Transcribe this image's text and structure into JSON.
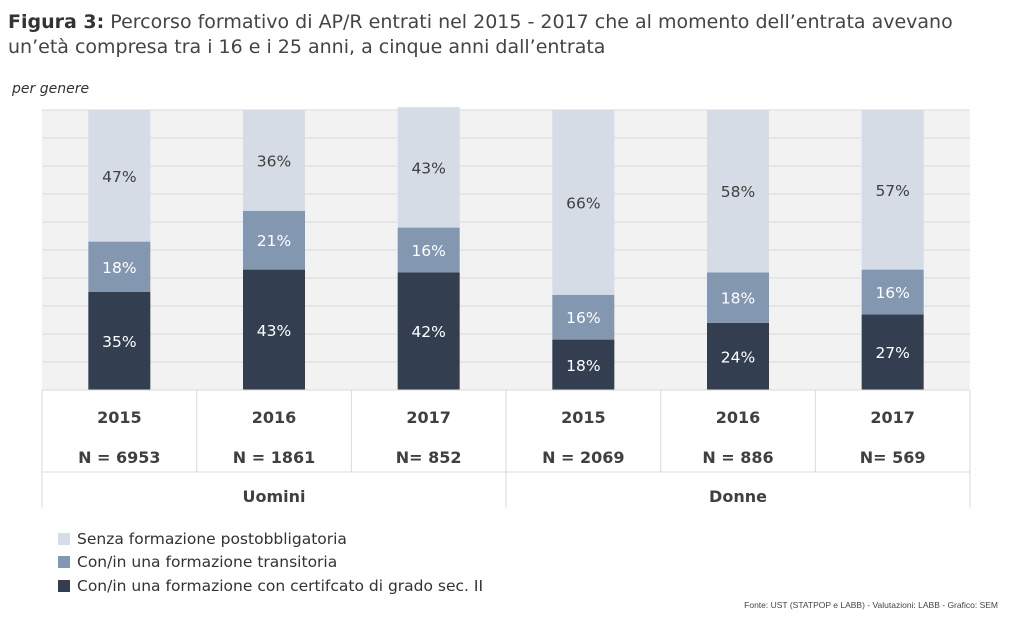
{
  "title_prefix": "Figura 3:",
  "title_text": "Percorso formativo di AP/R entrati nel 2015 - 2017 che al momento dell’entrata avevano un’età compresa tra i 16 e i 25 anni, a cinque anni dall’entrata",
  "subtitle": "per genere",
  "source": "Fonte: UST (STATPOP e LABB) - Valutazioni: LABB - Grafico: SEM",
  "colors": {
    "senza": "#d6dce5",
    "transitoria": "#8497b0",
    "certificato": "#333f50",
    "grid": "#d9d9d9",
    "plot_bg": "#f2f2f2"
  },
  "chart_data": {
    "type": "bar",
    "stacked": true,
    "ylim": [
      0,
      100
    ],
    "grid": true,
    "legend_position": "bottom-left",
    "categories": [
      "2015",
      "2016",
      "2017",
      "2015",
      "2016",
      "2017"
    ],
    "n_labels": [
      "N = 6953",
      "N = 1861",
      "N= 852",
      "N = 2069",
      "N = 886",
      "N= 569"
    ],
    "groups": [
      {
        "label": "Uomini",
        "span": [
          0,
          2
        ]
      },
      {
        "label": "Donne",
        "span": [
          3,
          5
        ]
      }
    ],
    "series": [
      {
        "name": "Con/in una formazione con certifcato di grado sec. II",
        "color": "#333f50",
        "values": [
          35,
          43,
          42,
          18,
          24,
          27
        ],
        "labels": [
          "35%",
          "43%",
          "42%",
          "18%",
          "24%",
          "27%"
        ]
      },
      {
        "name": "Con/in una formazione transitoria",
        "color": "#8497b0",
        "values": [
          18,
          21,
          16,
          16,
          18,
          16
        ],
        "labels": [
          "18%",
          "21%",
          "16%",
          "16%",
          "18%",
          "16%"
        ]
      },
      {
        "name": "Senza formazione postobbligatoria",
        "color": "#d6dce5",
        "values": [
          47,
          36,
          43,
          66,
          58,
          57
        ],
        "labels": [
          "47%",
          "36%",
          "43%",
          "66%",
          "58%",
          "57%"
        ]
      }
    ],
    "legend": [
      {
        "name": "Senza formazione postobbligatoria",
        "color": "#d6dce5"
      },
      {
        "name": "Con/in una formazione transitoria",
        "color": "#8497b0"
      },
      {
        "name": "Con/in una formazione con certifcato di grado sec. II",
        "color": "#333f50"
      }
    ]
  }
}
